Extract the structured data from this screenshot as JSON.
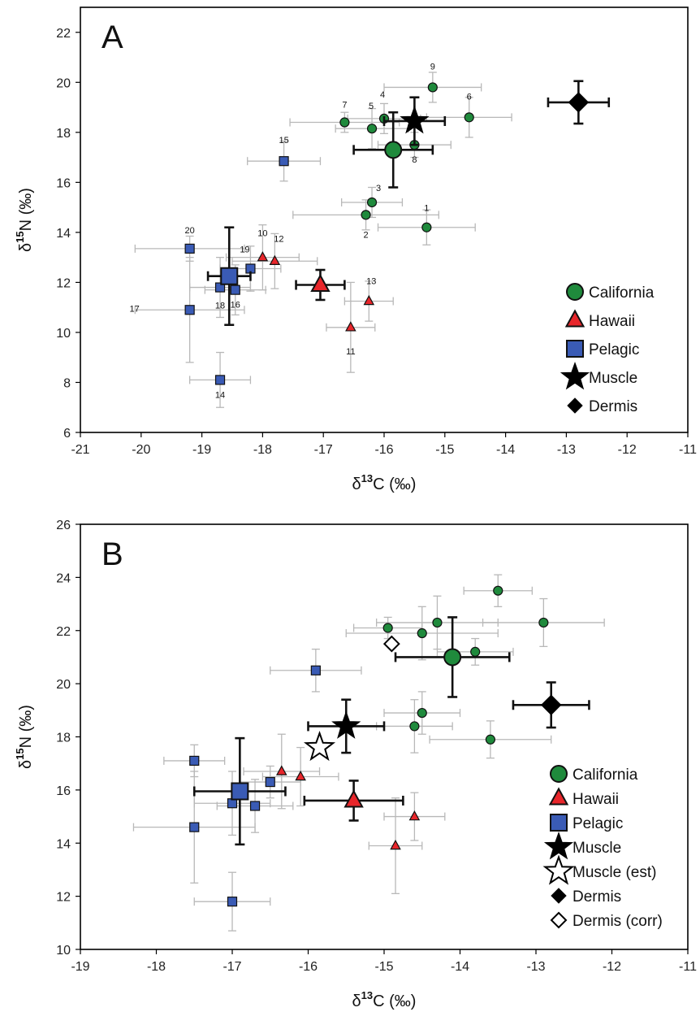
{
  "chart_data": [
    {
      "type": "scatter",
      "panel_label": "A",
      "xlabel": "δ13C (‰)",
      "ylabel": "δ15N (‰)",
      "xlim": [
        -21,
        -11
      ],
      "ylim": [
        6,
        23
      ],
      "xticks": [
        -21,
        -20,
        -19,
        -18,
        -17,
        -16,
        -15,
        -14,
        -13,
        -12,
        -11
      ],
      "yticks": [
        6,
        8,
        10,
        12,
        14,
        16,
        18,
        20,
        22
      ],
      "grid": false,
      "legend_position": "bottom-right",
      "colors": {
        "california": "#1f8a3c",
        "hawaii": "#e8262b",
        "pelagic": "#3a5bb5",
        "muscle": "#000000",
        "dermis": "#000000",
        "errorbar_light": "#b8b8b8",
        "errorbar_dark": "#111111"
      },
      "legend": [
        {
          "label": "California",
          "marker": "circle"
        },
        {
          "label": "Hawaii",
          "marker": "triangle"
        },
        {
          "label": "Pelagic",
          "marker": "square"
        },
        {
          "label": "Muscle",
          "marker": "star"
        },
        {
          "label": "Dermis",
          "marker": "diamond"
        }
      ],
      "series": [
        {
          "name": "California",
          "marker": "circle",
          "points": [
            {
              "id": "1",
              "x": -15.3,
              "y": 14.2,
              "xerr": 0.8,
              "yerr": 0.7
            },
            {
              "id": "2",
              "x": -16.3,
              "y": 14.7,
              "xerr": 1.2,
              "yerr": 0.6
            },
            {
              "id": "3",
              "x": -16.2,
              "y": 15.2,
              "xerr": 0.5,
              "yerr": 0.6
            },
            {
              "id": "4",
              "x": -16.0,
              "y": 18.55,
              "xerr": 0.6,
              "yerr": 0.6
            },
            {
              "id": "5",
              "x": -16.2,
              "y": 18.15,
              "xerr": 0.6,
              "yerr": 0.8
            },
            {
              "id": "6",
              "x": -14.6,
              "y": 18.6,
              "xerr": 0.7,
              "yerr": 0.8
            },
            {
              "id": "7",
              "x": -16.65,
              "y": 18.4,
              "xerr": 0.9,
              "yerr": 0.4
            },
            {
              "id": "8",
              "x": -15.5,
              "y": 17.5,
              "xerr": 0.6,
              "yerr": 0.5
            },
            {
              "id": "9",
              "x": -15.2,
              "y": 19.8,
              "xerr": 0.8,
              "yerr": 0.6
            }
          ],
          "mean": {
            "x": -15.85,
            "y": 17.3,
            "xerr": 0.65,
            "yerr": 1.5
          }
        },
        {
          "name": "Hawaii",
          "marker": "triangle",
          "points": [
            {
              "id": "10",
              "x": -18.0,
              "y": 13.0,
              "xerr": 0.6,
              "yerr": 1.3
            },
            {
              "id": "11",
              "x": -16.55,
              "y": 10.2,
              "xerr": 0.4,
              "yerr": 1.8
            },
            {
              "id": "12",
              "x": -17.8,
              "y": 12.85,
              "xerr": 0.7,
              "yerr": 1.1
            },
            {
              "id": "13",
              "x": -16.25,
              "y": 11.25,
              "xerr": 0.4,
              "yerr": 0.8
            }
          ],
          "mean": {
            "x": -17.05,
            "y": 11.9,
            "xerr": 0.4,
            "yerr": 0.6
          }
        },
        {
          "name": "Pelagic",
          "marker": "square",
          "points": [
            {
              "id": "14",
              "x": -18.7,
              "y": 8.1,
              "xerr": 0.5,
              "yerr": 1.1
            },
            {
              "id": "15",
              "x": -17.65,
              "y": 16.85,
              "xerr": 0.6,
              "yerr": 0.8
            },
            {
              "id": "16",
              "x": -18.45,
              "y": 11.7,
              "xerr": 0.5,
              "yerr": 1.0
            },
            {
              "id": "17",
              "x": -19.2,
              "y": 10.9,
              "xerr": 0.9,
              "yerr": 2.1
            },
            {
              "id": "18",
              "x": -18.7,
              "y": 11.8,
              "xerr": 0.5,
              "yerr": 1.2
            },
            {
              "id": "19",
              "x": -18.2,
              "y": 12.55,
              "xerr": 0.5,
              "yerr": 0.9
            },
            {
              "id": "20",
              "x": -19.2,
              "y": 13.35,
              "xerr": 0.9,
              "yerr": 0.5
            }
          ],
          "mean": {
            "x": -18.55,
            "y": 12.25,
            "xerr": 0.35,
            "yerr": 1.95
          }
        }
      ],
      "muscle": {
        "x": -15.5,
        "y": 18.45,
        "xerr": 0.5,
        "yerr": 0.95
      },
      "dermis": {
        "x": -12.8,
        "y": 19.2,
        "xerr": 0.5,
        "yerr": 0.85
      }
    },
    {
      "type": "scatter",
      "panel_label": "B",
      "xlabel": "δ13C (‰)",
      "ylabel": "δ15N (‰)",
      "xlim": [
        -19,
        -11
      ],
      "ylim": [
        10,
        26
      ],
      "xticks": [
        -19,
        -18,
        -17,
        -16,
        -15,
        -14,
        -13,
        -12,
        -11
      ],
      "yticks": [
        10,
        12,
        14,
        16,
        18,
        20,
        22,
        24,
        26
      ],
      "grid": false,
      "legend_position": "bottom-right",
      "legend": [
        {
          "label": "California",
          "marker": "circle"
        },
        {
          "label": "Hawaii",
          "marker": "triangle"
        },
        {
          "label": "Pelagic",
          "marker": "square"
        },
        {
          "label": "Muscle",
          "marker": "star"
        },
        {
          "label": "Muscle (est)",
          "marker": "star-open"
        },
        {
          "label": "Dermis",
          "marker": "diamond"
        },
        {
          "label": "Dermis (corr)",
          "marker": "diamond-open"
        }
      ],
      "series": [
        {
          "name": "California",
          "marker": "circle",
          "points": [
            {
              "x": -13.5,
              "y": 23.5,
              "xerr": 0.45,
              "yerr": 0.6
            },
            {
              "x": -14.95,
              "y": 22.1,
              "xerr": 0.45,
              "yerr": 0.4
            },
            {
              "x": -14.5,
              "y": 21.9,
              "xerr": 1.0,
              "yerr": 1.0
            },
            {
              "x": -14.3,
              "y": 22.3,
              "xerr": 0.8,
              "yerr": 1.0
            },
            {
              "x": -12.9,
              "y": 22.3,
              "xerr": 0.8,
              "yerr": 0.9
            },
            {
              "x": -13.8,
              "y": 21.2,
              "xerr": 0.5,
              "yerr": 0.5
            },
            {
              "x": -14.5,
              "y": 18.9,
              "xerr": 0.5,
              "yerr": 0.8
            },
            {
              "x": -14.6,
              "y": 18.4,
              "xerr": 0.5,
              "yerr": 1.0
            },
            {
              "x": -13.6,
              "y": 17.9,
              "xerr": 0.8,
              "yerr": 0.7
            }
          ],
          "mean": {
            "x": -14.1,
            "y": 21.0,
            "xerr": 0.75,
            "yerr": 1.5
          }
        },
        {
          "name": "Hawaii",
          "marker": "triangle",
          "points": [
            {
              "x": -16.35,
              "y": 16.7,
              "xerr": 0.5,
              "yerr": 1.4
            },
            {
              "x": -16.1,
              "y": 16.5,
              "xerr": 0.5,
              "yerr": 1.1
            },
            {
              "x": -14.85,
              "y": 13.9,
              "xerr": 0.35,
              "yerr": 1.8
            },
            {
              "x": -14.6,
              "y": 15.0,
              "xerr": 0.4,
              "yerr": 0.9
            }
          ],
          "mean": {
            "x": -15.4,
            "y": 15.6,
            "xerr": 0.65,
            "yerr": 0.75
          }
        },
        {
          "name": "Pelagic",
          "marker": "square",
          "points": [
            {
              "x": -17.5,
              "y": 17.1,
              "xerr": 0.4,
              "yerr": 0.6
            },
            {
              "x": -15.9,
              "y": 20.5,
              "xerr": 0.6,
              "yerr": 0.8
            },
            {
              "x": -16.5,
              "y": 16.3,
              "xerr": 0.4,
              "yerr": 0.6
            },
            {
              "x": -17.0,
              "y": 15.5,
              "xerr": 0.5,
              "yerr": 1.2
            },
            {
              "x": -16.7,
              "y": 15.4,
              "xerr": 0.5,
              "yerr": 1.0
            },
            {
              "x": -17.5,
              "y": 14.6,
              "xerr": 0.8,
              "yerr": 2.1
            },
            {
              "x": -17.0,
              "y": 11.8,
              "xerr": 0.5,
              "yerr": 1.1
            }
          ],
          "mean": {
            "x": -16.9,
            "y": 15.95,
            "xerr": 0.6,
            "yerr": 2.0
          }
        }
      ],
      "muscle": {
        "x": -15.5,
        "y": 18.4,
        "xerr": 0.5,
        "yerr": 1.0
      },
      "muscle_est": {
        "x": -15.85,
        "y": 17.6
      },
      "dermis": {
        "x": -12.8,
        "y": 19.2,
        "xerr": 0.5,
        "yerr": 0.85
      },
      "dermis_corr": {
        "x": -14.9,
        "y": 21.5
      }
    }
  ]
}
